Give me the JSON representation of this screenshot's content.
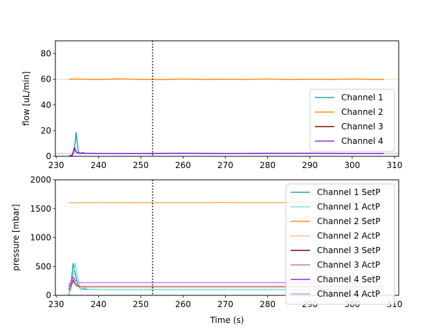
{
  "chart_data": [
    {
      "type": "line",
      "ylabel": "flow [uL/min]",
      "xlabel": "",
      "xlim": [
        229.8,
        311.0
      ],
      "ylim": [
        0,
        90
      ],
      "xticks": [
        230,
        240,
        250,
        260,
        270,
        280,
        290,
        300,
        310
      ],
      "yticks": [
        0,
        20,
        40,
        60,
        80
      ],
      "vline_x": 252.8,
      "hlines": [
        {
          "y": 60,
          "color": "#f6d3a8"
        },
        {
          "y": 2.3,
          "color": "#c9a6f2"
        }
      ],
      "legend_position": "lower-right",
      "series": [
        {
          "name": "Channel 1",
          "color": "#17a9a3",
          "x": [
            233.0,
            233.8,
            234.3,
            234.7,
            235.2,
            235.7,
            236.2,
            237,
            240,
            250,
            260,
            270,
            280,
            290,
            300,
            307.5
          ],
          "y": [
            0,
            0.5,
            5,
            18.5,
            4,
            2,
            3,
            2.2,
            2.3,
            2.2,
            2.3,
            2.2,
            2.4,
            2.3,
            2.3,
            2.3
          ]
        },
        {
          "name": "Channel 2",
          "color": "#ff8c0a",
          "x": [
            233.0,
            235,
            240,
            245,
            250,
            255,
            260,
            265,
            270,
            275,
            280,
            285,
            290,
            295,
            300,
            305,
            307.5
          ],
          "y": [
            60.0,
            60.2,
            59.9,
            60.3,
            60.0,
            59.8,
            60.2,
            60.0,
            60.1,
            60.0,
            60.2,
            59.9,
            60.1,
            60.0,
            60.2,
            60.0,
            60.0
          ]
        },
        {
          "name": "Channel 3",
          "color": "#7a0000",
          "x": [
            233.0,
            233.8,
            234.3,
            234.8,
            235.5,
            236.5,
            240,
            250,
            260,
            270,
            280,
            290,
            300,
            307.5
          ],
          "y": [
            0,
            1,
            6,
            3,
            2.5,
            2.3,
            2.2,
            2.2,
            2.3,
            2.2,
            2.2,
            2.3,
            2.2,
            2.2
          ]
        },
        {
          "name": "Channel 4",
          "color": "#8a2be2",
          "x": [
            233.0,
            233.8,
            234.3,
            234.8,
            235.5,
            236.5,
            240,
            250,
            260,
            270,
            280,
            290,
            300,
            307.5
          ],
          "y": [
            0,
            1,
            7,
            3,
            2.5,
            2.4,
            2.3,
            2.3,
            2.4,
            2.3,
            2.3,
            2.4,
            2.3,
            2.3
          ]
        }
      ]
    },
    {
      "type": "line",
      "ylabel": "pressure [mbar]",
      "xlabel": "Time (s)",
      "xlim": [
        229.8,
        311.0
      ],
      "ylim": [
        0,
        2000
      ],
      "xticks": [
        230,
        240,
        250,
        260,
        270,
        280,
        290,
        300,
        310
      ],
      "yticks": [
        0,
        500,
        1000,
        1500,
        2000
      ],
      "vline_x": 252.8,
      "legend_position": "right",
      "series": [
        {
          "name": "Channel 1 SetP",
          "color": "#17a9a3",
          "x": [
            233.0,
            233.5,
            234.0,
            234.5,
            235.0,
            235.5,
            236.0,
            237,
            240,
            250,
            260,
            270,
            280,
            290,
            300,
            307.5
          ],
          "y": [
            0,
            200,
            550,
            380,
            200,
            130,
            110,
            105,
            100,
            100,
            100,
            100,
            100,
            100,
            100,
            100
          ]
        },
        {
          "name": "Channel 1 ActP",
          "color": "#80dcd6",
          "x": [
            233.0,
            233.5,
            234.0,
            234.5,
            235.0,
            235.5,
            236.0,
            236.5,
            237.5,
            240,
            250,
            260,
            270,
            280,
            290,
            300,
            307.5
          ],
          "y": [
            30,
            100,
            350,
            560,
            350,
            150,
            90,
            130,
            105,
            100,
            100,
            100,
            100,
            100,
            100,
            100,
            100
          ]
        },
        {
          "name": "Channel 2 SetP",
          "color": "#ff8c0a",
          "x": [
            233.0,
            235,
            240,
            250,
            260,
            270,
            280,
            290,
            300,
            307.5
          ],
          "y": [
            1605,
            1603,
            1607,
            1606,
            1605,
            1607,
            1606,
            1605,
            1606,
            1606
          ]
        },
        {
          "name": "Channel 2 ActP",
          "color": "#ffc07a",
          "x": [
            233.0,
            235,
            240,
            250,
            260,
            270,
            280,
            290,
            300,
            307.5
          ],
          "y": [
            1605,
            1604,
            1606,
            1605,
            1606,
            1605,
            1606,
            1605,
            1605,
            1605
          ]
        },
        {
          "name": "Channel 3 SetP",
          "color": "#7a0000",
          "x": [
            233.0,
            233.5,
            234.0,
            234.5,
            235.0,
            236,
            240,
            250,
            260,
            270,
            280,
            290,
            300,
            307.5
          ],
          "y": [
            100,
            180,
            260,
            200,
            160,
            150,
            150,
            150,
            150,
            150,
            150,
            150,
            150,
            150
          ]
        },
        {
          "name": "Channel 3 ActP",
          "color": "#c97a7a",
          "x": [
            233.0,
            233.5,
            234.0,
            234.5,
            235.0,
            236,
            240,
            250,
            260,
            270,
            280,
            290,
            300,
            307.5
          ],
          "y": [
            80,
            150,
            240,
            190,
            155,
            148,
            150,
            150,
            150,
            150,
            150,
            150,
            150,
            150
          ]
        },
        {
          "name": "Channel 4 SetP",
          "color": "#8a2be2",
          "x": [
            233.0,
            233.5,
            234.0,
            234.5,
            235.0,
            236,
            240,
            250,
            260,
            270,
            280,
            290,
            300,
            307.5
          ],
          "y": [
            150,
            250,
            310,
            260,
            225,
            220,
            220,
            220,
            220,
            220,
            220,
            220,
            220,
            220
          ]
        },
        {
          "name": "Channel 4 ActP",
          "color": "#c79af0",
          "x": [
            233.0,
            233.5,
            234.0,
            234.5,
            235.0,
            236,
            240,
            250,
            260,
            270,
            280,
            290,
            300,
            307.5
          ],
          "y": [
            120,
            220,
            290,
            250,
            222,
            218,
            220,
            220,
            220,
            220,
            220,
            220,
            220,
            220
          ]
        }
      ]
    }
  ]
}
